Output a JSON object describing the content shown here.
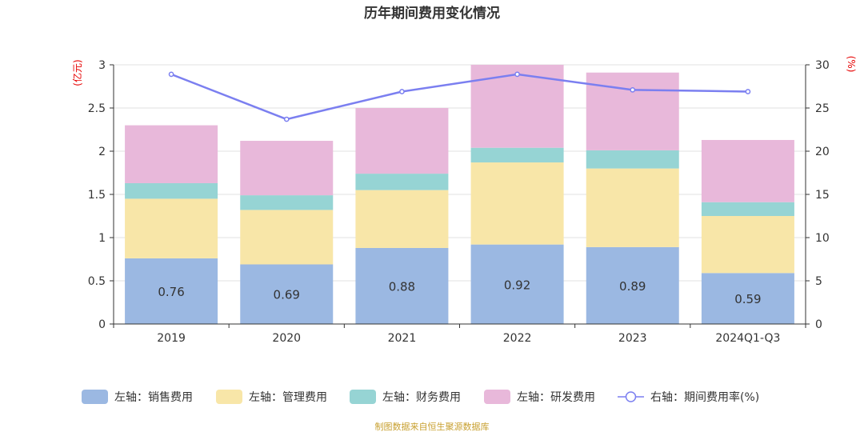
{
  "chart_data": {
    "type": "bar",
    "stacked": true,
    "title": "历年期间费用变化情况",
    "categories": [
      "2019",
      "2020",
      "2021",
      "2022",
      "2023",
      "2024Q1-Q3"
    ],
    "y_left": {
      "unit": "(亿元)",
      "min": 0,
      "max": 3,
      "step": 0.5,
      "tick_labels": [
        "0",
        "0.5",
        "1",
        "1.5",
        "2",
        "2.5",
        "3"
      ]
    },
    "y_right": {
      "unit": "(%)",
      "min": 0,
      "max": 30,
      "step": 5,
      "tick_labels": [
        "0",
        "5",
        "10",
        "15",
        "20",
        "25",
        "30"
      ]
    },
    "series": [
      {
        "name": "左轴：销售费用",
        "axis": "left",
        "color": "#9bb8e2",
        "values": [
          0.76,
          0.69,
          0.88,
          0.92,
          0.89,
          0.59
        ],
        "labels": [
          "0.76",
          "0.69",
          "0.88",
          "0.92",
          "0.89",
          "0.59"
        ]
      },
      {
        "name": "左轴：管理费用",
        "axis": "left",
        "color": "#f8e6a8",
        "values": [
          0.69,
          0.63,
          0.67,
          0.95,
          0.91,
          0.66
        ]
      },
      {
        "name": "左轴：财务费用",
        "axis": "left",
        "color": "#96d4d4",
        "values": [
          0.18,
          0.17,
          0.19,
          0.17,
          0.21,
          0.16
        ]
      },
      {
        "name": "左轴：研发费用",
        "axis": "left",
        "color": "#e8b8da",
        "values": [
          0.67,
          0.63,
          0.76,
          0.96,
          0.9,
          0.72
        ]
      },
      {
        "name": "右轴：期间费用率(%)",
        "axis": "right",
        "type": "line",
        "color": "#7b7ff0",
        "values": [
          28.9,
          23.7,
          26.9,
          28.9,
          27.1,
          26.9
        ]
      }
    ],
    "source": "制图数据来自恒生聚源数据库"
  }
}
